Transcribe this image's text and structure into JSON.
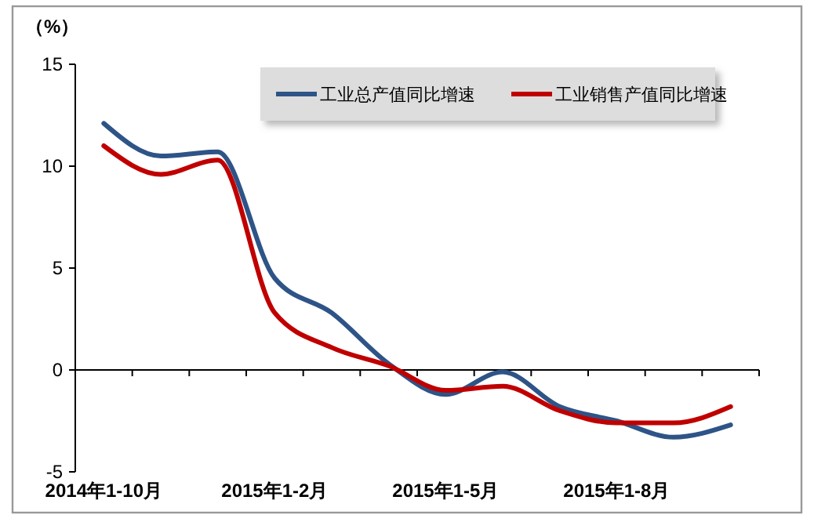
{
  "chart_data": {
    "type": "line",
    "ylabel": "（%）",
    "categories": [
      "2014年1-10月",
      null,
      null,
      "2015年1-2月",
      null,
      null,
      "2015年1-5月",
      null,
      null,
      "2015年1-8月",
      null,
      null
    ],
    "series": [
      {
        "name": "工业总产值同比增速",
        "color": "#2e5487",
        "values": [
          12.1,
          10.5,
          10.7,
          4.5,
          2.8,
          0.3,
          -1.2,
          -0.1,
          -1.8,
          -2.5,
          -3.3,
          -2.7
        ]
      },
      {
        "name": "工业销售产值同比增速",
        "color": "#c00000",
        "values": [
          11.0,
          9.6,
          10.3,
          2.8,
          1.1,
          0.2,
          -1.0,
          -0.8,
          -2.0,
          -2.6,
          -2.6,
          -1.8
        ]
      }
    ],
    "ylim": [
      -5,
      15
    ],
    "yticks": [
      -5,
      0,
      5,
      10,
      15
    ],
    "legend": "top right"
  }
}
